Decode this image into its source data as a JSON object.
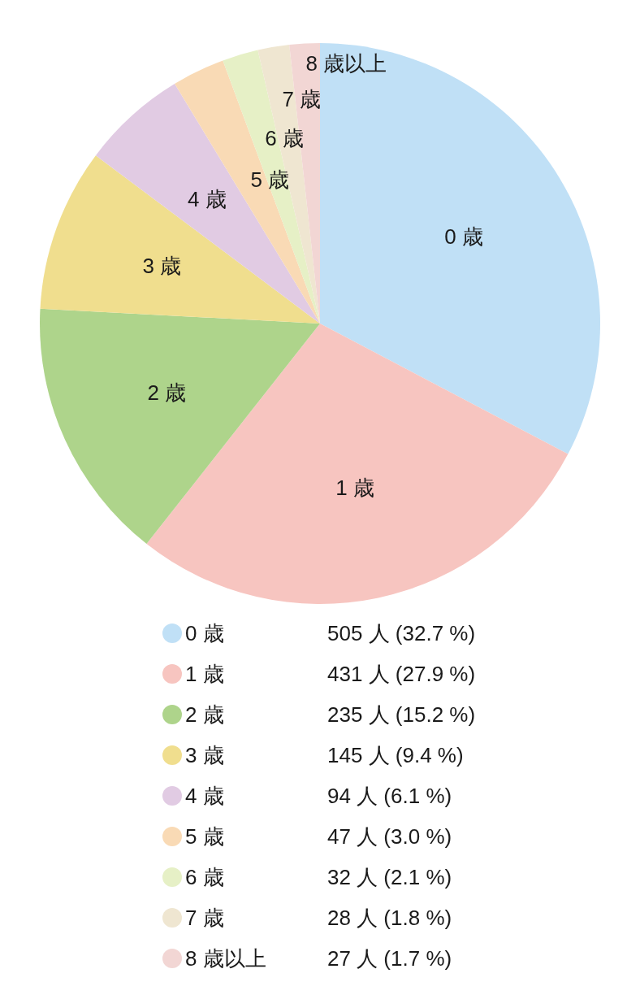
{
  "chart_data": {
    "type": "pie",
    "categories": [
      "0 歳",
      "1 歳",
      "2 歳",
      "3 歳",
      "4 歳",
      "5 歳",
      "6 歳",
      "7 歳",
      "8 歳以上"
    ],
    "values": [
      505,
      431,
      235,
      145,
      94,
      47,
      32,
      28,
      27
    ],
    "colors": [
      "#c0e0f6",
      "#f7c5c0",
      "#aed48b",
      "#f0de8e",
      "#e1cbe3",
      "#f9dab5",
      "#e6f0c6",
      "#efe6d1",
      "#f2d6d4"
    ],
    "value_labels": [
      "505 人 (32.7 %)",
      "431 人 (27.9 %)",
      "235 人 (15.2 %)",
      "145 人 (9.4 %)",
      "94 人 (6.1 %)",
      "47 人 (3.0 %)",
      "32 人 (2.1 %)",
      "28 人 (1.8 %)",
      "27 人 (1.7 %)"
    ],
    "legend": "bottom"
  }
}
